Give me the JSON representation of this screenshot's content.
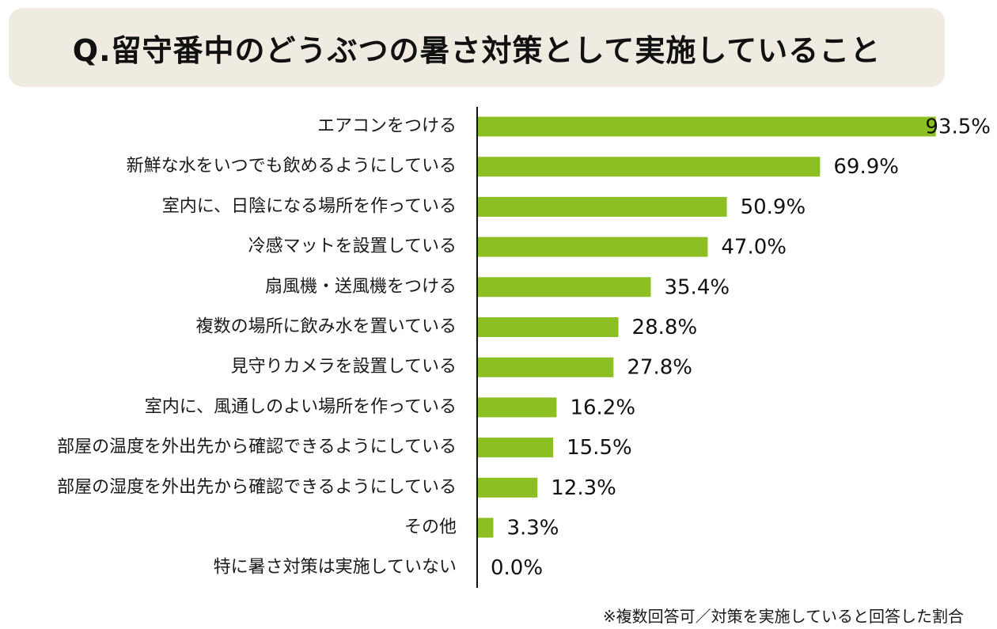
{
  "title": "Q.留守番中のどうぶつの暑さ対策として実施していること",
  "footnote": "※複数回答可／対策を実施していると回答した割合",
  "colors": {
    "bar": "#8cbf22",
    "title_background": "#efebe1",
    "axis": "#111111"
  },
  "chart_data": {
    "type": "bar",
    "orientation": "horizontal",
    "title": "Q.留守番中のどうぶつの暑さ対策として実施していること",
    "xlim": [
      0,
      100
    ],
    "unit": "%",
    "grid": false,
    "categories": [
      "エアコンをつける",
      "新鮮な水をいつでも飲めるようにしている",
      "室内に、日陰になる場所を作っている",
      "冷感マットを設置している",
      "扇風機・送風機をつける",
      "複数の場所に飲み水を置いている",
      "見守りカメラを設置している",
      "室内に、風通しのよい場所を作っている",
      "部屋の温度を外出先から確認できるようにしている",
      "部屋の湿度を外出先から確認できるようにしている",
      "その他",
      "特に暑さ対策は実施していない"
    ],
    "values": [
      93.5,
      69.9,
      50.9,
      47.0,
      35.4,
      28.8,
      27.8,
      16.2,
      15.5,
      12.3,
      3.3,
      0.0
    ],
    "value_labels": [
      "93.5%",
      "69.9%",
      "50.9%",
      "47.0%",
      "35.4%",
      "28.8%",
      "27.8%",
      "16.2%",
      "15.5%",
      "12.3%",
      "3.3%",
      "0.0%"
    ]
  }
}
